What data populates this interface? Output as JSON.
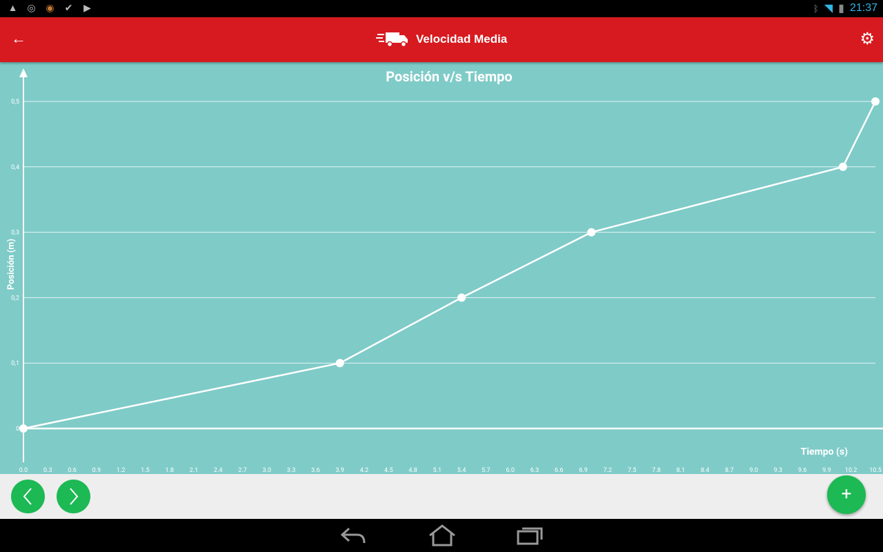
{
  "status_bar": {
    "time": "21:37",
    "icons": [
      "gallery-icon",
      "chrome-icon",
      "alarm-icon",
      "clipboard-check-icon",
      "play-store-icon"
    ],
    "right_icons": [
      "bluetooth-icon",
      "wifi-icon",
      "battery-icon"
    ]
  },
  "app_bar": {
    "title": "Velocidad Media",
    "icon": "delivery-truck-icon",
    "back_icon": "arrow-back-icon",
    "settings_icon": "gear-icon",
    "color": "#d71a1f"
  },
  "chart_data": {
    "type": "line",
    "title": "Posición v/s Tiempo",
    "xlabel": "Tiempo (s)",
    "ylabel": "Posición (m)",
    "x_ticks": [
      "0.0",
      "0.3",
      "0.6",
      "0.9",
      "1.2",
      "1.5",
      "1.8",
      "2.1",
      "2.4",
      "2.7",
      "3.0",
      "3.3",
      "3.6",
      "3.9",
      "4.2",
      "4.5",
      "4.8",
      "5.1",
      "5.4",
      "5.7",
      "6.0",
      "6.3",
      "6.6",
      "6.9",
      "7.2",
      "7.5",
      "7.8",
      "8.1",
      "8.4",
      "8.7",
      "9.0",
      "9.3",
      "9.6",
      "9.9",
      "10.2",
      "10.5"
    ],
    "y_ticks": [
      "0",
      "0,1",
      "0,2",
      "0,3",
      "0,4",
      "0,5"
    ],
    "xlim": [
      0,
      10.5
    ],
    "ylim": [
      0,
      0.5
    ],
    "grid": "horizontal",
    "background": "#7fcbc8",
    "line_color": "#ffffff",
    "points": [
      {
        "x": 0.0,
        "y": 0.0
      },
      {
        "x": 3.9,
        "y": 0.1
      },
      {
        "x": 5.4,
        "y": 0.2
      },
      {
        "x": 7.0,
        "y": 0.3
      },
      {
        "x": 10.1,
        "y": 0.4
      },
      {
        "x": 10.5,
        "y": 0.5
      }
    ]
  },
  "bottom_bar": {
    "prev_label": "<",
    "next_label": ">",
    "add_label": "+",
    "button_color": "#1db954"
  },
  "nav_bar": {
    "icons": [
      "back-icon",
      "home-icon",
      "recents-icon"
    ]
  }
}
